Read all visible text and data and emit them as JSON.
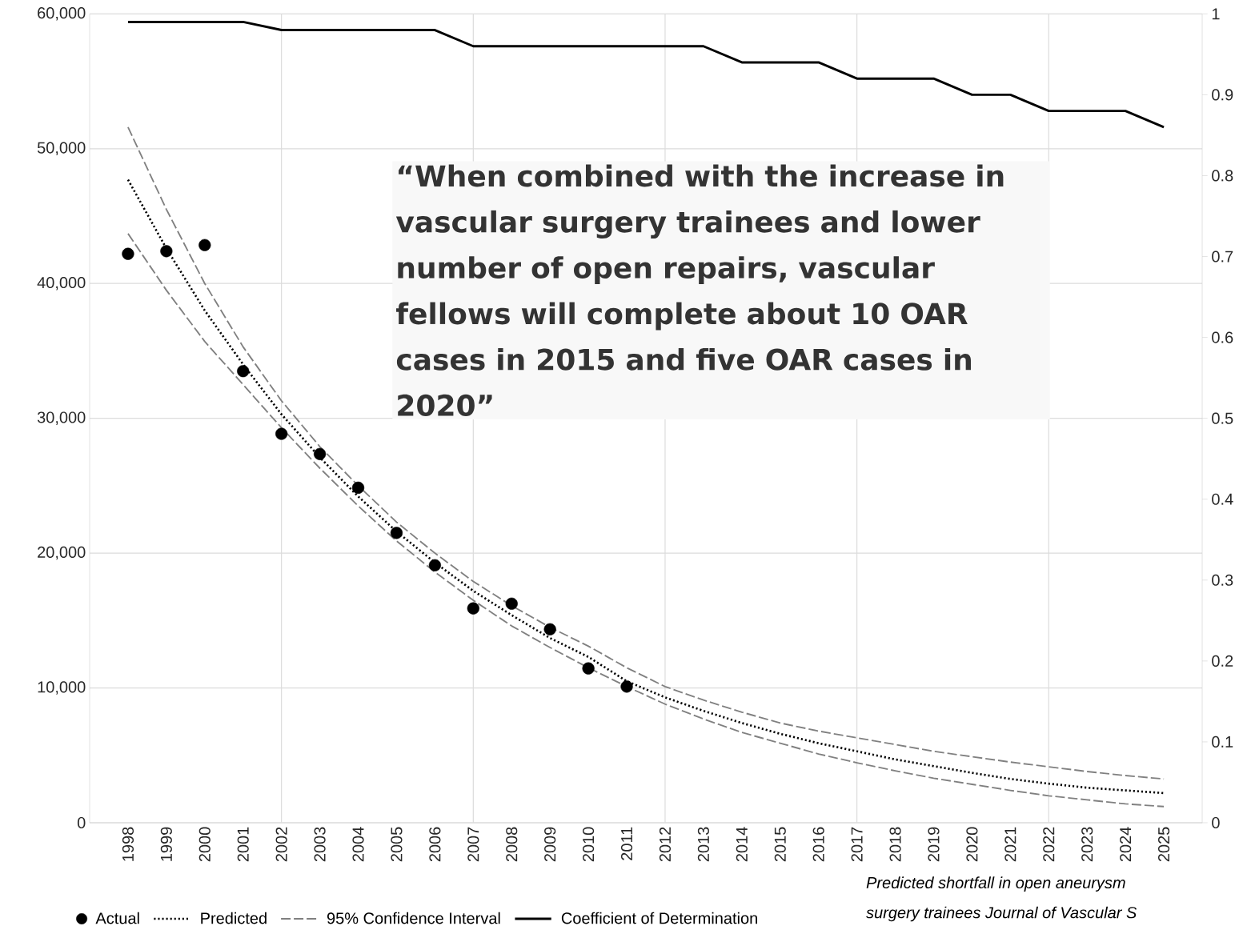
{
  "chart_data": {
    "type": "line",
    "categories": [
      "1998",
      "1999",
      "2000",
      "2001",
      "2002",
      "2003",
      "2004",
      "2005",
      "2006",
      "2007",
      "2008",
      "2009",
      "2010",
      "2011",
      "2012",
      "2013",
      "2014",
      "2015",
      "2016",
      "2017",
      "2018",
      "2019",
      "2020",
      "2021",
      "2022",
      "2023",
      "2024",
      "2025"
    ],
    "series": [
      {
        "name": "Actual",
        "type": "scatter",
        "marker": "circle",
        "color": "#000000",
        "values": [
          42200,
          42400,
          42850,
          33500,
          28850,
          27350,
          24850,
          21500,
          19100,
          15900,
          16250,
          14350,
          11450,
          10100,
          null,
          null,
          null,
          null,
          null,
          null,
          null,
          null,
          null,
          null,
          null,
          null,
          null,
          null
        ]
      },
      {
        "name": "Predicted",
        "line_style": "dotted",
        "color": "#000000",
        "values": [
          47700,
          42600,
          38000,
          34000,
          30300,
          27100,
          24200,
          21600,
          19300,
          17200,
          15400,
          13700,
          12300,
          10500,
          9300,
          8300,
          7400,
          6600,
          5900,
          5300,
          4700,
          4200,
          3700,
          3250,
          2900,
          2600,
          2400,
          2200
        ]
      },
      {
        "name": "95% Confidence Interval",
        "line_style": "dashed",
        "color": "#808080",
        "values": [
          51600,
          45500,
          40000,
          35300,
          31300,
          27900,
          25000,
          22300,
          20000,
          17900,
          16100,
          14500,
          13100,
          11500,
          10100,
          9100,
          8200,
          7400,
          6800,
          6300,
          5800,
          5300,
          4900,
          4500,
          4150,
          3800,
          3500,
          3250
        ]
      },
      {
        "line_style": "dashed",
        "color": "#808080",
        "values": [
          43700,
          39500,
          35700,
          32500,
          29300,
          26300,
          23500,
          20900,
          18600,
          16500,
          14600,
          13000,
          11500,
          10100,
          8800,
          7700,
          6700,
          5900,
          5100,
          4450,
          3850,
          3300,
          2850,
          2400,
          2000,
          1700,
          1400,
          1200
        ]
      },
      {
        "name": "Coefficient of Determination",
        "line_style": "solid",
        "axis": "y2",
        "color": "#000000",
        "values": [
          0.99,
          0.99,
          0.99,
          0.99,
          0.98,
          0.98,
          0.98,
          0.98,
          0.98,
          0.96,
          0.96,
          0.96,
          0.96,
          0.96,
          0.96,
          0.96,
          0.94,
          0.94,
          0.94,
          0.92,
          0.92,
          0.92,
          0.9,
          0.9,
          0.88,
          0.88,
          0.88,
          0.86
        ]
      }
    ],
    "ylim": [
      0,
      60000
    ],
    "yticks": [
      {
        "value": 0,
        "label": "0"
      },
      {
        "value": 10000,
        "label": "10,000"
      },
      {
        "value": 20000,
        "label": "20,000"
      },
      {
        "value": 30000,
        "label": "30,000"
      },
      {
        "value": 40000,
        "label": "40,000"
      },
      {
        "value": 50000,
        "label": "50,000"
      },
      {
        "value": 60000,
        "label": "60,000"
      }
    ],
    "y2lim": [
      0,
      1
    ],
    "y2ticks": [
      0,
      0.1,
      0.2,
      0.3,
      0.4,
      0.5,
      0.6,
      0.7,
      0.8,
      0.9,
      1
    ],
    "grid": true,
    "legend": "bottom",
    "annotations": [
      "“When combined with the increase in vascular surgery trainees and lower number of open repairs, vascular fellows will complete about 10 OAR cases in 2015 and five OAR cases in 2020”",
      "*Predicted shortfall in open aneurysm*",
      "*surgery trainees Journal of Vascular S*"
    ]
  }
}
